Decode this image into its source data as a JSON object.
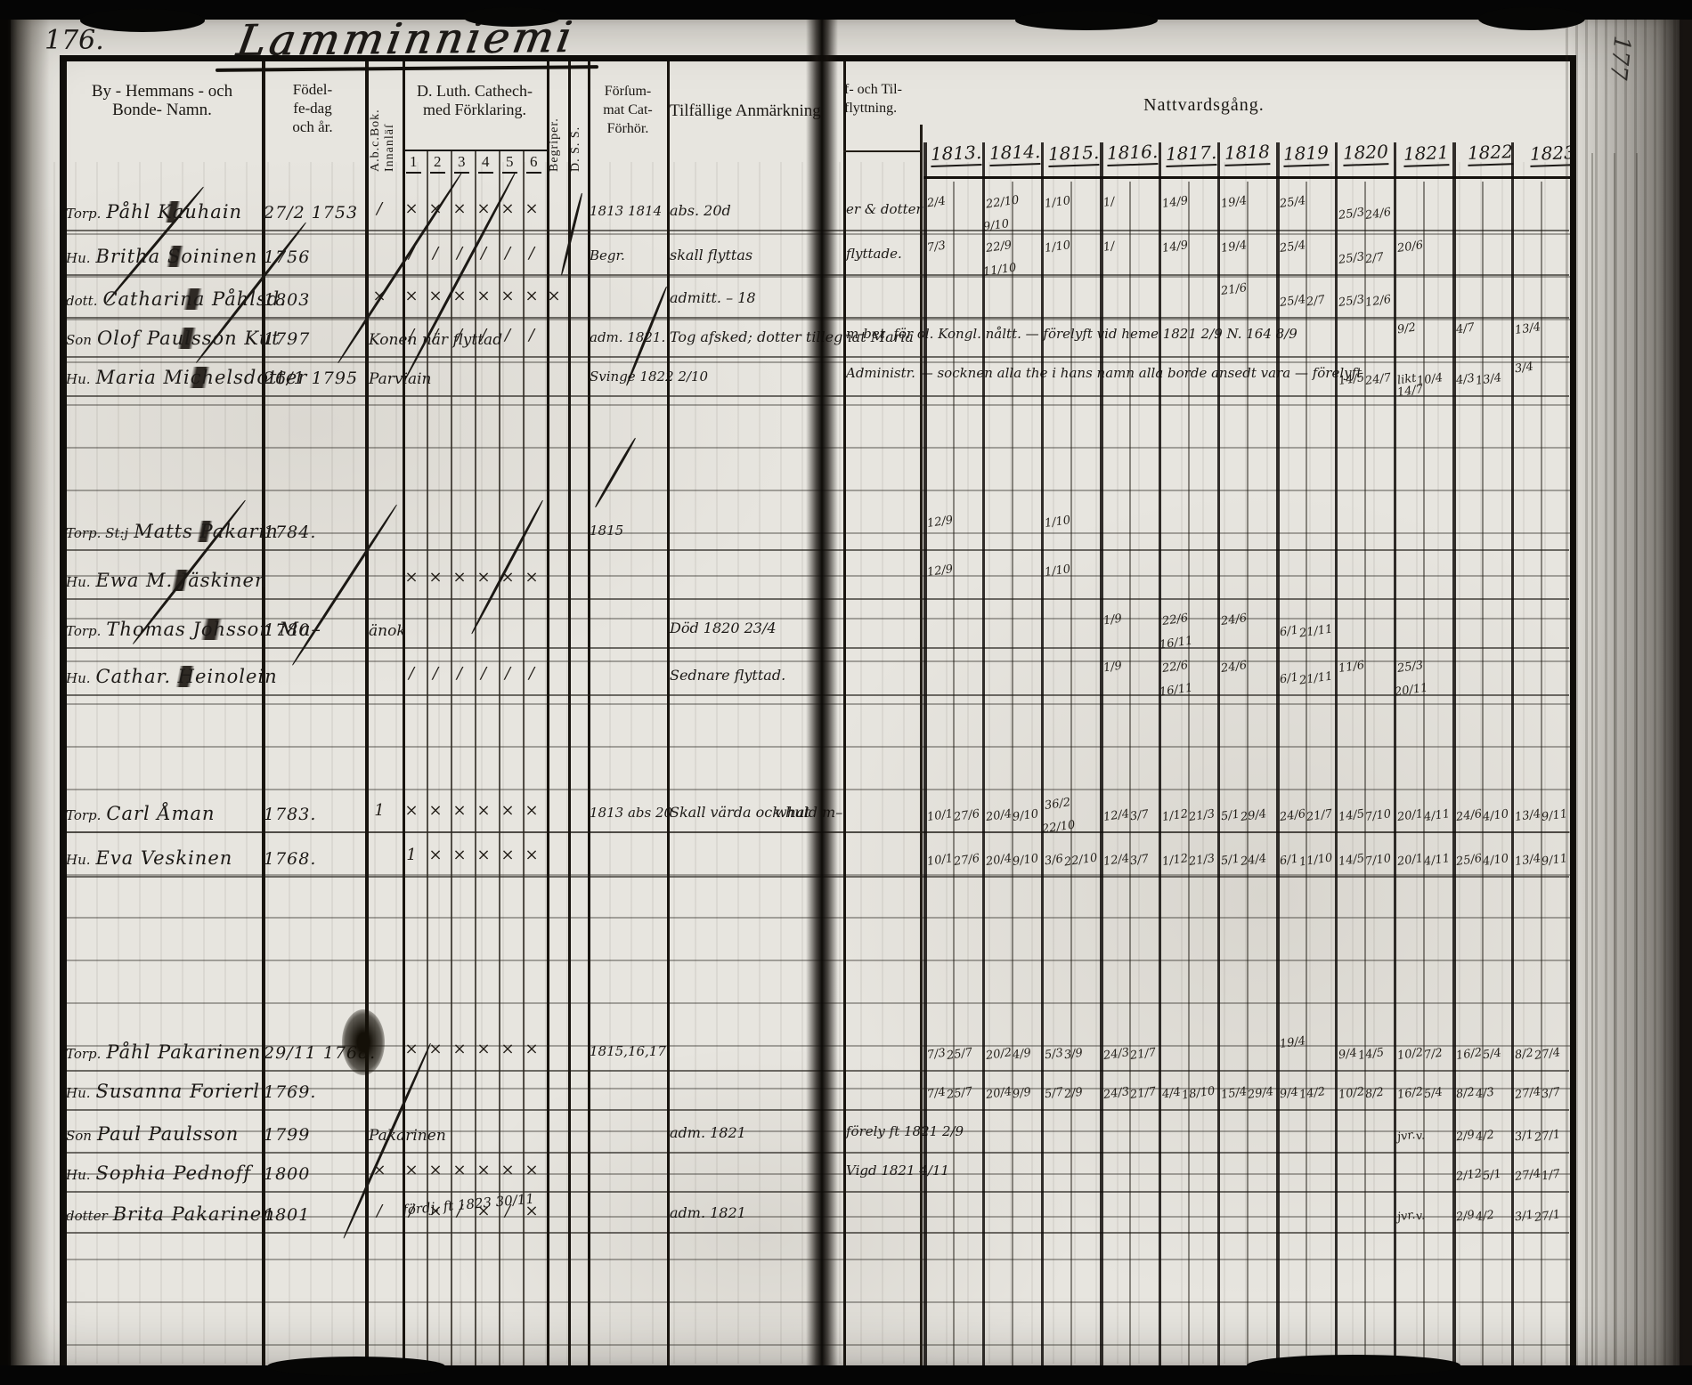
{
  "page": {
    "left_number": "176.",
    "right_number": "177",
    "title": "Lamminniemi"
  },
  "header": {
    "name": [
      "By - Hemmans - och",
      "Bonde- Namn."
    ],
    "birth": [
      "Födel-",
      "fe-dag",
      "och år."
    ],
    "abc": "A.b.c.Bok. Innanläſ",
    "cat": [
      "D. Luth. Cathech-",
      "med Förklaring."
    ],
    "cat_cols": [
      "1",
      "2",
      "3",
      "4",
      "5",
      "6"
    ],
    "begriper": "Begriper.",
    "dss": "D. S. S.",
    "forsummat": [
      "Förſum-",
      "mat Cat-",
      "Förhör."
    ],
    "remarks": "Tilfällige Anmärkning",
    "flytt": [
      "f- och Til-",
      "flyttning."
    ],
    "communion": "Nattvardsgång.",
    "years": [
      "1813.",
      "1814.",
      "1815.",
      "1816.",
      "1817.",
      "1818",
      "1819",
      "1820",
      "1821",
      "1822",
      "1823"
    ]
  },
  "rows": [
    {
      "prefix": "Torp.",
      "name": "Påhl Kauhain",
      "birth": "27/2 1753",
      "abc": "/",
      "cat": [
        "×",
        "×",
        "×",
        "×",
        "×",
        "×"
      ],
      "fors": "1813 1814",
      "remark": "abs. 20d",
      "flytt": "er & dotter",
      "comm": [
        "2/4",
        "22/10 9/10",
        "1/10",
        "1/",
        "14/9",
        "19/4",
        "25/4",
        "25/3 24/6",
        "",
        "",
        ""
      ],
      "struck": true
    },
    {
      "prefix": "Hu.",
      "name": "Britha Soininen",
      "birth": "1756",
      "cat": [
        "/",
        "/",
        "/",
        "/",
        "/",
        "/"
      ],
      "fors": "Begr.",
      "remark": "skall flyttas",
      "flytt": "flyttade.",
      "comm": [
        "7/3",
        "22/9 11/10",
        "1/10",
        "1/",
        "14/9",
        "19/4",
        "25/4",
        "25/3 2/7",
        "20/6",
        "",
        ""
      ],
      "struck": true
    },
    {
      "prefix": "dott.",
      "name": "Catharina Påhlsd.",
      "birth": "1803",
      "abc": "×",
      "beg": "×",
      "cat": [
        "×",
        "×",
        "×",
        "×",
        "×",
        "×"
      ],
      "remark": "admitt. – 18",
      "comm": [
        "",
        "",
        "",
        "",
        "",
        "21/6",
        "25/4 2/7",
        "25/3 12/6",
        "",
        "",
        ""
      ],
      "struck": true
    },
    {
      "prefix": "Son",
      "name": "Olof Paulsson Kut",
      "birth": "1797",
      "after": "Konen när flyttad",
      "cat": [
        "/",
        "/",
        "/",
        "/",
        "/",
        "/"
      ],
      "fors": "adm. 1821.",
      "remark": "Tog afsked; dotter tillegnat Maria",
      "note": "m-bet. för ol. Kongl. nåltt. — förelyft vid heme 1821 2/9 N. 164 8/9",
      "comm": [
        "",
        "",
        "",
        "",
        "",
        "",
        "",
        "",
        "9/2",
        "4/7",
        "13/4"
      ],
      "struck": true
    },
    {
      "prefix": "Hu.",
      "name": "Maria Michelsdotter",
      "birth": "26/1 1795",
      "after": "Parviain",
      "fors": "Svinge 1822 2/10",
      "note": "Administr. — socknen alla the i hans namn alla borde ansedt vara — förelyft 1822 2/9",
      "comm": [
        "",
        "",
        "",
        "",
        "",
        "",
        "",
        "14/5 24/7",
        "likt 10/4 14/7",
        "4/3 13/4",
        "3/4"
      ],
      "struck": true
    },
    {
      "prefix": "Torp. St:j",
      "name": "Matts Pakarin",
      "birth": "1784.",
      "fors": "1815",
      "comm": [
        "12/9",
        "",
        "1/10",
        "",
        "",
        "",
        "",
        "",
        "",
        "",
        ""
      ],
      "struck": true
    },
    {
      "prefix": "Hu.",
      "name": "Ewa M. Jäskinen",
      "cat": [
        "×",
        "×",
        "×",
        "×",
        "×",
        "×"
      ],
      "comm": [
        "12/9",
        "",
        "1/10",
        "",
        "",
        "",
        "",
        "",
        "",
        "",
        ""
      ],
      "struck": true
    },
    {
      "prefix": "Torp.",
      "name": "Thomas Johsson Ma–",
      "birth": "1780",
      "after": "änok",
      "remark": "Död 1820 23/4",
      "comm": [
        "",
        "",
        "",
        "1/9",
        "22/6 16/11",
        "24/6",
        "6/1 21/11",
        "",
        "",
        "",
        ""
      ],
      "struck": true
    },
    {
      "prefix": "Hu.",
      "name": "Cathar. Heinolein",
      "cat": [
        "/",
        "/",
        "/",
        "/",
        "/",
        "/"
      ],
      "remark": "Sednare flyttad.",
      "comm": [
        "",
        "",
        "",
        "1/9",
        "22/6 16/11",
        "24/6",
        "6/1 21/11",
        "11/6",
        "25/3 20/11",
        "",
        ""
      ],
      "struck": true
    },
    {
      "prefix": "Torp.",
      "name": "Carl Åman",
      "birth": "1783.",
      "abc": "1",
      "cat": [
        "×",
        "×",
        "×",
        "×",
        "×",
        "×"
      ],
      "fors": "1813 abs 20",
      "remark": "Skall värda ock huld m–",
      "remark2": "what",
      "comm": [
        "10/1 27/6",
        "20/4 9/10",
        "36/2 22/10",
        "12/4 3/7",
        "1/12 21/3",
        "5/1 29/4",
        "24/6 21/7",
        "14/5 7/10",
        "20/1 4/11",
        "24/6 4/10",
        "13/4 9/11"
      ]
    },
    {
      "prefix": "Hu.",
      "name": "Eva Veskinen",
      "birth": "1768.",
      "cat": [
        "1",
        "×",
        "×",
        "×",
        "×",
        "×"
      ],
      "comm": [
        "10/1 27/6",
        "20/4 9/10",
        "3/6 22/10",
        "12/4 3/7",
        "1/12 21/3",
        "5/1 24/4",
        "6/1 11/10",
        "14/5 7/10",
        "20/1 4/11",
        "25/6 4/10",
        "13/4 9/11"
      ]
    },
    {
      "prefix": "Torp.",
      "name": "Påhl Pakarinen",
      "birth": "29/11 1768.",
      "cat": [
        "×",
        "×",
        "×",
        "×",
        "×",
        "×"
      ],
      "fors": "1815,16,17",
      "comm": [
        "7/3 25/7",
        "20/2 4/9",
        "5/3 3/9",
        "24/3 21/7",
        "",
        "",
        "19/4",
        "9/4 14/5",
        "10/2 7/2",
        "16/2 5/4",
        "8/2 27/4"
      ]
    },
    {
      "prefix": "Hu.",
      "name": "Susanna Forierl",
      "birth": "1769.",
      "comm": [
        "7/4 25/7",
        "20/4 9/9",
        "5/7 2/9",
        "24/3 21/7",
        "4/4 18/10",
        "15/4 29/4",
        "9/4 14/2",
        "10/2 8/2",
        "16/2 5/4",
        "8/2 4/3",
        "27/4 3/7"
      ]
    },
    {
      "prefix": "Son",
      "name": "Paul Paulsson",
      "birth": "1799",
      "after": "Pakarinen",
      "remark": "adm. 1821",
      "flytt": "förely ft 1821 2/9",
      "comm": [
        "",
        "",
        "",
        "",
        "",
        "",
        "",
        "",
        "jvr. v.",
        "2/9 4/2",
        "3/1 27/1"
      ]
    },
    {
      "prefix": "Hu.",
      "name": "Sophia Pednoff",
      "birth": "1800",
      "abc": "×",
      "cat": [
        "×",
        "×",
        "×",
        "×",
        "×",
        "×"
      ],
      "flytt": "Vigd 1821 4/11",
      "comm": [
        "",
        "",
        "",
        "",
        "",
        "",
        "",
        "",
        "",
        "2/12 5/1",
        "27/4 1/7"
      ]
    },
    {
      "prefix": "dotter",
      "name": "Brita Pakarinen",
      "birth": "1801",
      "abc": "/",
      "cat": [
        "/",
        "×",
        "/",
        "×",
        "/",
        "×"
      ],
      "cat_note": "fördj. ft 1823 30/11",
      "remark": "adm. 1821",
      "comm": [
        "",
        "",
        "",
        "",
        "",
        "",
        "",
        "",
        "jvr. v.",
        "2/9 4/2",
        "3/1 27/1"
      ]
    }
  ]
}
